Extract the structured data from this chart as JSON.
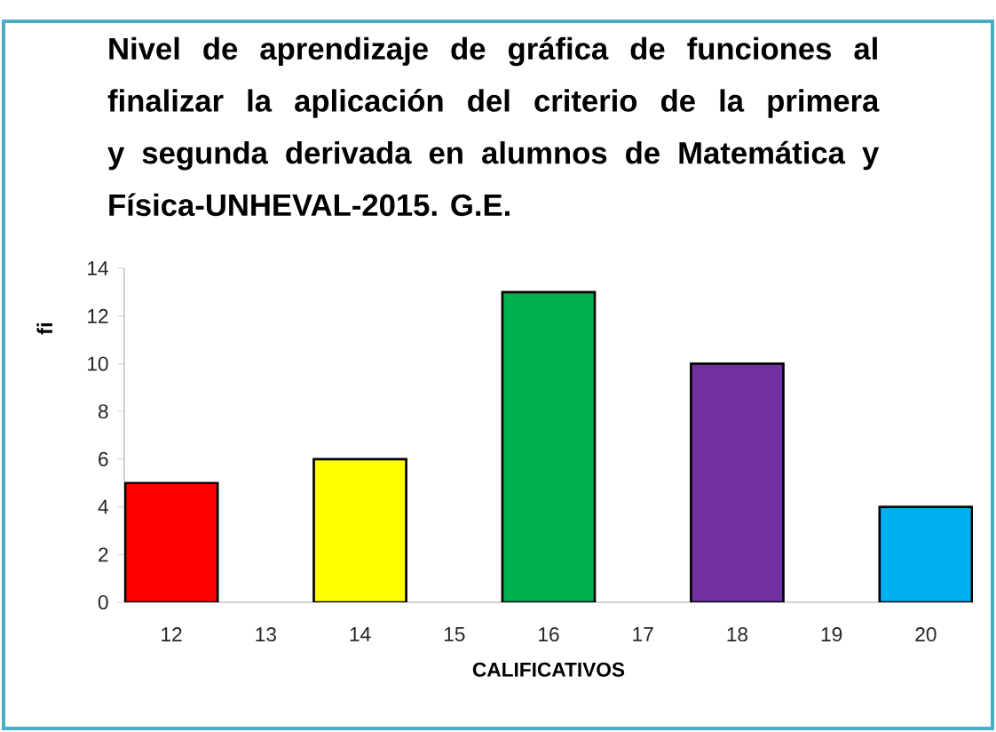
{
  "chart_data": {
    "type": "bar",
    "title": "Nivel de aprendizaje de gráfica de funciones al finalizar la aplicación del criterio de la primera y segunda derivada en alumnos de Matemática y Física-UNHEVAL-2015. G.E.",
    "xlabel": "CALIFICATIVOS",
    "ylabel": "fi",
    "categories": [
      "12",
      "13",
      "14",
      "15",
      "16",
      "17",
      "18",
      "19",
      "20"
    ],
    "values": [
      5,
      0,
      6,
      0,
      13,
      0,
      10,
      0,
      4
    ],
    "colors": [
      "#ff0000",
      null,
      "#ffff00",
      null,
      "#00b050",
      null,
      "#7030a0",
      null,
      "#00b0f0"
    ],
    "ylim": [
      0,
      14
    ],
    "yticks": [
      0,
      2,
      4,
      6,
      8,
      10,
      12,
      14
    ]
  }
}
